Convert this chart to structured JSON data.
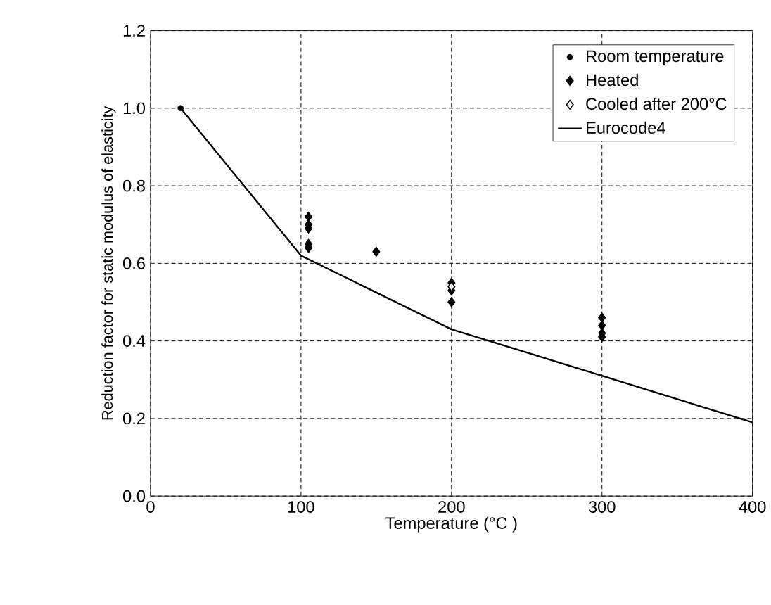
{
  "chart_data": {
    "type": "scatter",
    "xlabel": "Temperature (°C )",
    "ylabel": "Reduction factor for static modulus of elasticity",
    "xlim": [
      0,
      400
    ],
    "xticks": [
      0,
      100,
      200,
      300,
      400
    ],
    "ylim": [
      0,
      1.2
    ],
    "yticks": [
      {
        "value": 0,
        "label": "0.0"
      },
      {
        "value": 0.2,
        "label": "0.2"
      },
      {
        "value": 0.4,
        "label": "0.4"
      },
      {
        "value": 0.6,
        "label": "0.6"
      },
      {
        "value": 0.8,
        "label": "0.8"
      },
      {
        "value": 1.0,
        "label": "1.0"
      },
      {
        "value": 1.2,
        "label": "1.2"
      }
    ],
    "grid": true,
    "legend": "top right",
    "series": [
      {
        "name": "Room temperature",
        "color": "#000000",
        "marker": "circle",
        "x": [
          20
        ],
        "values": [
          1.0
        ]
      },
      {
        "name": "Heated",
        "color": "#000000",
        "marker": "diamond",
        "x": [
          105,
          105,
          105,
          105,
          105,
          150,
          200,
          200,
          200,
          300,
          300,
          300,
          300
        ],
        "values": [
          0.72,
          0.7,
          0.69,
          0.65,
          0.64,
          0.63,
          0.55,
          0.53,
          0.5,
          0.46,
          0.44,
          0.42,
          0.41
        ]
      },
      {
        "name": "Cooled after 200°C",
        "color": "#ffffff",
        "marker": "diamond",
        "x": [
          200
        ],
        "values": [
          0.54
        ]
      },
      {
        "name": "Eurocode4",
        "color": "#000000",
        "type": "line",
        "marker": "none",
        "x": [
          20,
          100,
          200,
          300,
          400
        ],
        "values": [
          1.0,
          0.62,
          0.43,
          0.31,
          0.19
        ]
      }
    ]
  }
}
